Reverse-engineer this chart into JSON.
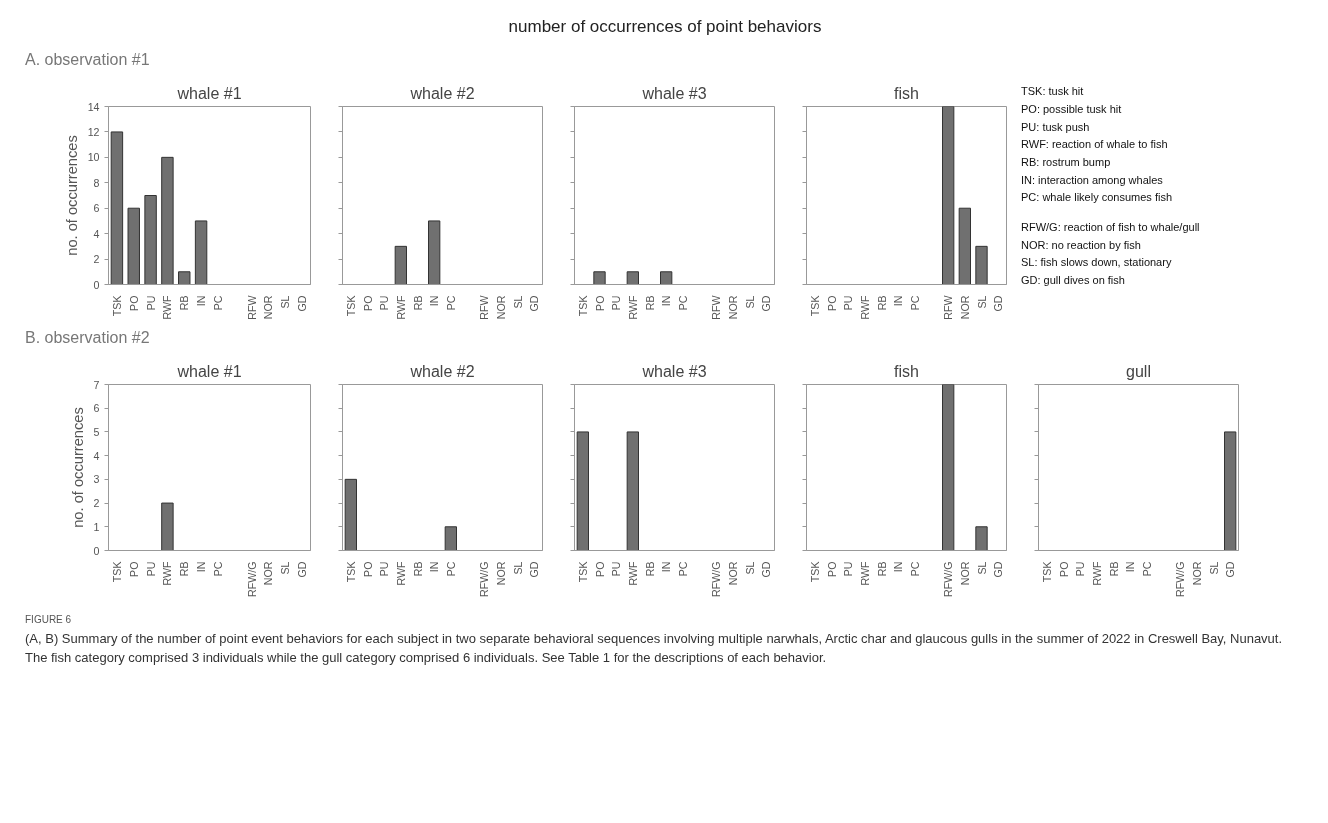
{
  "chart_data": [
    {
      "type": "other",
      "title": "number of occurrences of point behaviors"
    },
    {
      "type": "other",
      "annotations": [
        "A. observation #1"
      ]
    },
    {
      "type": "bar",
      "title": "whale #1",
      "ylabel": "no. of occurrences",
      "categories": [
        "TSK",
        "PO",
        "PU",
        "RWF",
        "RB",
        "IN",
        "PC",
        null,
        "RFW",
        "NOR",
        "SL",
        "GD"
      ],
      "values": [
        12,
        6,
        7,
        10,
        1,
        5,
        0,
        null,
        0,
        0,
        0,
        0
      ],
      "color": "#707070",
      "ylim": [
        0,
        14
      ],
      "yticks": [
        0,
        2,
        4,
        6,
        8,
        10,
        12,
        14
      ]
    },
    {
      "type": "bar",
      "title": "whale #2",
      "categories": [
        "TSK",
        "PO",
        "PU",
        "RWF",
        "RB",
        "IN",
        "PC",
        null,
        "RFW",
        "NOR",
        "SL",
        "GD"
      ],
      "values": [
        0,
        0,
        0,
        3,
        0,
        5,
        0,
        null,
        0,
        0,
        0,
        0
      ],
      "color": "#707070",
      "ylim": [
        0,
        14
      ],
      "yticks": [
        {
          "value": 0,
          "label": null
        },
        {
          "value": 2,
          "label": null
        },
        {
          "value": 4,
          "label": null
        },
        {
          "value": 6,
          "label": null
        },
        {
          "value": 8,
          "label": null
        },
        {
          "value": 10,
          "label": null
        },
        {
          "value": 12,
          "label": null
        },
        {
          "value": 14,
          "label": null
        }
      ],
      "tick_labels": "x"
    },
    {
      "type": "bar",
      "title": "whale #3",
      "categories": [
        "TSK",
        "PO",
        "PU",
        "RWF",
        "RB",
        "IN",
        "PC",
        null,
        "RFW",
        "NOR",
        "SL",
        "GD"
      ],
      "values": [
        0,
        1,
        0,
        1,
        0,
        1,
        0,
        null,
        0,
        0,
        0,
        0
      ],
      "color": "#707070",
      "ylim": [
        0,
        14
      ],
      "yticks": [
        {
          "value": 0,
          "label": null
        },
        {
          "value": 2,
          "label": null
        },
        {
          "value": 4,
          "label": null
        },
        {
          "value": 6,
          "label": null
        },
        {
          "value": 8,
          "label": null
        },
        {
          "value": 10,
          "label": null
        },
        {
          "value": 12,
          "label": null
        },
        {
          "value": 14,
          "label": null
        }
      ],
      "tick_labels": "x"
    },
    {
      "type": "bar",
      "title": "fish",
      "categories": [
        "TSK",
        "PO",
        "PU",
        "RWF",
        "RB",
        "IN",
        "PC",
        null,
        "RFW",
        "NOR",
        "SL",
        "GD"
      ],
      "values": [
        0,
        0,
        0,
        0,
        0,
        0,
        0,
        null,
        14,
        6,
        3,
        0
      ],
      "color": "#707070",
      "ylim": [
        0,
        14
      ],
      "yticks": [
        {
          "value": 0,
          "label": null
        },
        {
          "value": 2,
          "label": null
        },
        {
          "value": 4,
          "label": null
        },
        {
          "value": 6,
          "label": null
        },
        {
          "value": 8,
          "label": null
        },
        {
          "value": 10,
          "label": null
        },
        {
          "value": 12,
          "label": null
        },
        {
          "value": 14,
          "label": null
        }
      ],
      "tick_labels": "x"
    },
    {
      "type": "other",
      "annotations": [
        "TSK: tusk hit",
        "PO: possible tusk hit",
        "PU: tusk push",
        "RWF: reaction of whale to fish",
        "RB: rostrum bump",
        "IN: interaction among whales",
        "PC: whale likely consumes fish",
        "RFW/G: reaction of fish to whale/gull",
        "NOR: no reaction by fish",
        "SL: fish slows down, stationary",
        "GD: gull dives on fish"
      ]
    },
    {
      "type": "other",
      "annotations": [
        "B. observation #2"
      ]
    },
    {
      "type": "bar",
      "title": "whale #1",
      "ylabel": "no. of occurrences",
      "categories": [
        "TSK",
        "PO",
        "PU",
        "RWF",
        "RB",
        "IN",
        "PC",
        null,
        "RFW/G",
        "NOR",
        "SL",
        "GD"
      ],
      "values": [
        0,
        0,
        0,
        2,
        0,
        0,
        0,
        null,
        0,
        0,
        0,
        0
      ],
      "color": "#707070",
      "ylim": [
        0,
        7
      ],
      "yticks": [
        0,
        1,
        2,
        3,
        4,
        5,
        6,
        7
      ]
    },
    {
      "type": "bar",
      "title": "whale #2",
      "categories": [
        "TSK",
        "PO",
        "PU",
        "RWF",
        "RB",
        "IN",
        "PC",
        null,
        "RFW/G",
        "NOR",
        "SL",
        "GD"
      ],
      "values": [
        3,
        0,
        0,
        0,
        0,
        0,
        1,
        null,
        0,
        0,
        0,
        0
      ],
      "color": "#707070",
      "ylim": [
        0,
        7
      ],
      "yticks": [
        {
          "value": 0,
          "label": null
        },
        {
          "value": 1,
          "label": null
        },
        {
          "value": 2,
          "label": null
        },
        {
          "value": 3,
          "label": null
        },
        {
          "value": 4,
          "label": null
        },
        {
          "value": 5,
          "label": null
        },
        {
          "value": 6,
          "label": null
        },
        {
          "value": 7,
          "label": null
        }
      ],
      "tick_labels": "x"
    },
    {
      "type": "bar",
      "title": "whale #3",
      "categories": [
        "TSK",
        "PO",
        "PU",
        "RWF",
        "RB",
        "IN",
        "PC",
        null,
        "RFW/G",
        "NOR",
        "SL",
        "GD"
      ],
      "values": [
        5,
        0,
        0,
        5,
        0,
        0,
        0,
        null,
        0,
        0,
        0,
        0
      ],
      "color": "#707070",
      "ylim": [
        0,
        7
      ],
      "yticks": [
        {
          "value": 0,
          "label": null
        },
        {
          "value": 1,
          "label": null
        },
        {
          "value": 2,
          "label": null
        },
        {
          "value": 3,
          "label": null
        },
        {
          "value": 4,
          "label": null
        },
        {
          "value": 5,
          "label": null
        },
        {
          "value": 6,
          "label": null
        },
        {
          "value": 7,
          "label": null
        }
      ],
      "tick_labels": "x"
    },
    {
      "type": "bar",
      "title": "fish",
      "categories": [
        "TSK",
        "PO",
        "PU",
        "RWF",
        "RB",
        "IN",
        "PC",
        null,
        "RFW/G",
        "NOR",
        "SL",
        "GD"
      ],
      "values": [
        0,
        0,
        0,
        0,
        0,
        0,
        0,
        null,
        7,
        0,
        1,
        0
      ],
      "color": "#707070",
      "ylim": [
        0,
        7
      ],
      "yticks": [
        {
          "value": 0,
          "label": null
        },
        {
          "value": 1,
          "label": null
        },
        {
          "value": 2,
          "label": null
        },
        {
          "value": 3,
          "label": null
        },
        {
          "value": 4,
          "label": null
        },
        {
          "value": 5,
          "label": null
        },
        {
          "value": 6,
          "label": null
        },
        {
          "value": 7,
          "label": null
        }
      ],
      "tick_labels": "x"
    },
    {
      "type": "bar",
      "title": "gull",
      "categories": [
        "TSK",
        "PO",
        "PU",
        "RWF",
        "RB",
        "IN",
        "PC",
        null,
        "RFW/G",
        "NOR",
        "SL",
        "GD"
      ],
      "values": [
        0,
        0,
        0,
        0,
        0,
        0,
        0,
        null,
        0,
        0,
        0,
        5
      ],
      "color": "#707070",
      "ylim": [
        0,
        7
      ],
      "yticks": [
        {
          "value": 0,
          "label": null
        },
        {
          "value": 1,
          "label": null
        },
        {
          "value": 2,
          "label": null
        },
        {
          "value": 3,
          "label": null
        },
        {
          "value": 4,
          "label": null
        },
        {
          "value": 5,
          "label": null
        },
        {
          "value": 6,
          "label": null
        },
        {
          "value": 7,
          "label": null
        }
      ],
      "tick_labels": "x"
    },
    {
      "type": "other",
      "annotations": [
        "FIGURE 6",
        "(A, B) Summary of the number of point event behaviors for each subject in two separate behavioral sequences involving multiple narwhals, Arctic char and glaucous gulls in the summer of 2022 in Creswell Bay, Nunavut. The fish category comprised 3 individuals while the gull category comprised 6 individuals. See Table 1 for the descriptions of each behavior."
      ]
    }
  ]
}
